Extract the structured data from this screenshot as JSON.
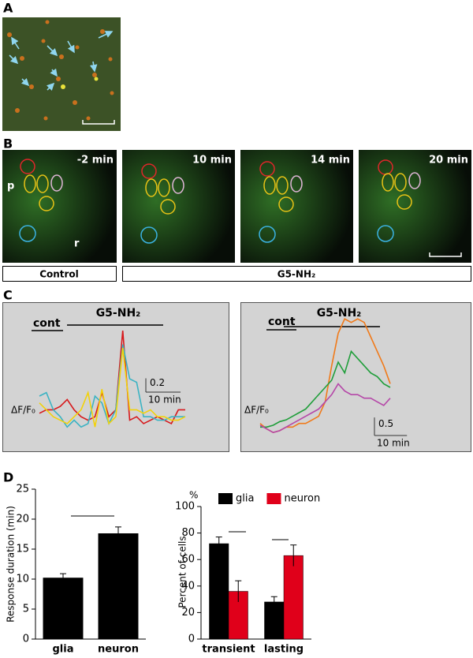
{
  "panels": {
    "a": "A",
    "b": "B",
    "c": "C",
    "d": "D"
  },
  "panel_b": {
    "times": [
      "-2 min",
      "10 min",
      "14 min",
      "20 min"
    ],
    "regions": [
      "p",
      "r"
    ],
    "conditions": [
      "Control",
      "G5-NH₂"
    ]
  },
  "chart_data": [
    {
      "type": "line",
      "ylabel": "ΔF/F₀",
      "annotations": [
        "cont",
        "G5-NH₂"
      ],
      "x": [
        0,
        2,
        4,
        6,
        8,
        10,
        12,
        14,
        16,
        18,
        20,
        22,
        24,
        26,
        28,
        30,
        32,
        34,
        36,
        38,
        40,
        42
      ],
      "xlim": [
        0,
        42
      ],
      "ylim": [
        -0.05,
        1.6
      ],
      "scale_bar": {
        "y": 0.2,
        "x": {
          "value": 10,
          "label": "10 min"
        }
      },
      "series": [
        {
          "color": "#d7191c",
          "values": [
            0.25,
            0.3,
            0.3,
            0.35,
            0.45,
            0.3,
            0.2,
            0.15,
            0.2,
            0.55,
            0.2,
            0.3,
            1.45,
            0.15,
            0.2,
            0.1,
            0.15,
            0.2,
            0.15,
            0.1,
            0.3,
            0.3
          ]
        },
        {
          "color": "#3bb3c3",
          "values": [
            0.5,
            0.55,
            0.3,
            0.2,
            0.05,
            0.15,
            0.05,
            0.1,
            0.5,
            0.4,
            0.1,
            0.3,
            1.25,
            0.75,
            0.7,
            0.2,
            0.2,
            0.15,
            0.15,
            0.2,
            0.2,
            0.2
          ]
        },
        {
          "color": "#f2d20a",
          "values": [
            0.4,
            0.3,
            0.2,
            0.15,
            0.1,
            0.2,
            0.3,
            0.55,
            0.05,
            0.6,
            0.1,
            0.2,
            1.2,
            0.3,
            0.3,
            0.25,
            0.3,
            0.2,
            0.2,
            0.15,
            0.15,
            0.2
          ]
        }
      ]
    },
    {
      "type": "line",
      "ylabel": "ΔF/F₀",
      "annotations": [
        "cont",
        "G5-NH₂"
      ],
      "x": [
        0,
        2,
        4,
        6,
        8,
        10,
        12,
        14,
        16,
        18,
        20,
        22,
        24,
        26,
        28,
        30,
        32,
        34,
        36,
        38,
        40
      ],
      "xlim": [
        0,
        40
      ],
      "ylim": [
        -0.2,
        3.3
      ],
      "scale_bar": {
        "y": 0.5,
        "x": {
          "value": 10,
          "label": "10 min"
        }
      },
      "series": [
        {
          "color": "#f07a1a",
          "values": [
            0.2,
            0.05,
            -0.05,
            0,
            0.1,
            0.1,
            0.2,
            0.2,
            0.3,
            0.4,
            0.8,
            1.8,
            2.7,
            3.1,
            3.0,
            3.1,
            3.0,
            2.6,
            2.2,
            1.8,
            1.3
          ]
        },
        {
          "color": "#1f9e3a",
          "values": [
            0.1,
            0.1,
            0.15,
            0.25,
            0.3,
            0.4,
            0.5,
            0.6,
            0.8,
            1.0,
            1.2,
            1.4,
            1.9,
            1.6,
            2.2,
            2.0,
            1.8,
            1.6,
            1.5,
            1.3,
            1.2
          ]
        },
        {
          "color": "#b547a8",
          "values": [
            0.15,
            0.05,
            -0.05,
            0,
            0.1,
            0.2,
            0.3,
            0.4,
            0.5,
            0.6,
            0.8,
            1.0,
            1.3,
            1.1,
            1.0,
            1.0,
            0.9,
            0.9,
            0.8,
            0.7,
            0.9
          ]
        }
      ]
    },
    {
      "type": "bar",
      "ylabel": "Response duration (min)",
      "categories": [
        "glia",
        "neuron"
      ],
      "values": [
        10.2,
        17.6
      ],
      "errors": [
        0.7,
        1.1
      ],
      "color": "#000000",
      "ylim": [
        0,
        25
      ],
      "yticks": [
        0,
        5,
        10,
        15,
        20,
        25
      ]
    },
    {
      "type": "bar",
      "unit": "%",
      "ylabel": "Percent of cells",
      "categories": [
        "transient",
        "lasting"
      ],
      "ylim": [
        0,
        100
      ],
      "yticks": [
        0,
        20,
        40,
        60,
        80,
        100
      ],
      "legend": "top",
      "series": [
        {
          "name": "glia",
          "color": "#000000",
          "values": [
            72,
            28
          ],
          "errors": [
            5,
            4
          ]
        },
        {
          "name": "neuron",
          "color": "#e0001a",
          "values": [
            36,
            63
          ],
          "errors": [
            8,
            8
          ]
        }
      ]
    }
  ]
}
